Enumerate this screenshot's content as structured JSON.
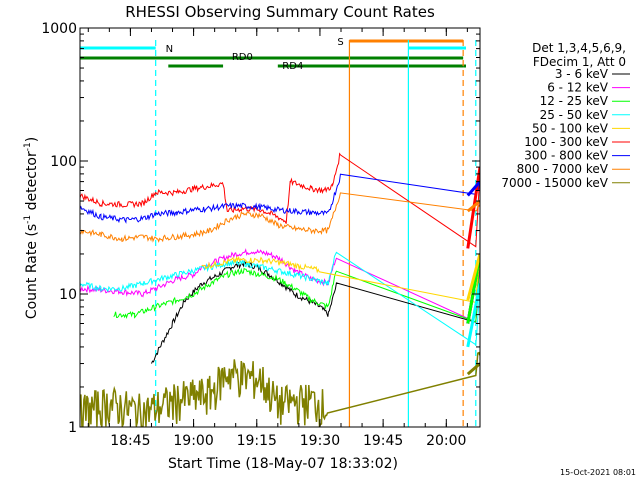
{
  "chart_data": {
    "type": "line",
    "title": "RHESSI Observing Summary Count Rates",
    "xlabel": "Start Time (18-May-07 18:33:02)",
    "ylabel": "Count Rate (s⁻¹ detector⁻¹)",
    "ylabel_parts": {
      "main": "Count Rate (s",
      "sup1": "-1",
      "mid": " detector",
      "sup2": "-1",
      "end": ")"
    },
    "y_scale": "log",
    "ylim": [
      1,
      1000
    ],
    "xlim": [
      "18:33:02",
      "20:08:00"
    ],
    "x_ticks": [
      "18:45",
      "19:00",
      "19:15",
      "19:30",
      "19:45",
      "20:00"
    ],
    "y_ticks": [
      "1",
      "10",
      "100",
      "1000"
    ],
    "legend_header": [
      "Det 1,3,4,5,6,9,",
      "FDecim 1, Att 0"
    ],
    "legend_position": "right",
    "timestamp": "15-Oct-2021 08:01",
    "flags": [
      {
        "label": "N",
        "color": "#00ffff"
      },
      {
        "label": "S",
        "color": "#ff8000"
      },
      {
        "label": "RD0",
        "color": "#008000"
      },
      {
        "label": "RD4",
        "color": "#008000"
      }
    ],
    "flag_intervals": {
      "N": [
        [
          "18:33",
          "18:51"
        ],
        [
          "19:51",
          "20:07"
        ]
      ],
      "S": [
        [
          "19:37",
          "20:04"
        ]
      ],
      "RD0": [
        [
          "18:33",
          "19:37"
        ],
        [
          "19:37",
          "20:04"
        ]
      ],
      "RD4": [
        [
          "18:54",
          "19:07"
        ],
        [
          "19:20",
          "20:04"
        ],
        [
          "20:04",
          "20:08"
        ]
      ]
    },
    "vertical_lines": [
      {
        "time": "18:51",
        "color": "#00ffff",
        "style": "dashed"
      },
      {
        "time": "19:37",
        "color": "#ff8000",
        "style": "solid"
      },
      {
        "time": "19:51",
        "color": "#00ffff",
        "style": "solid"
      },
      {
        "time": "20:04",
        "color": "#ff8000",
        "style": "dashed"
      },
      {
        "time": "20:07",
        "color": "#00ffff",
        "style": "dashed"
      }
    ],
    "series": [
      {
        "name": "3 - 6 keV",
        "color": "#000000",
        "points": [
          [
            "18:50",
            3
          ],
          [
            "18:52",
            4
          ],
          [
            "18:55",
            6
          ],
          [
            "18:58",
            9
          ],
          [
            "19:02",
            12
          ],
          [
            "19:06",
            14
          ],
          [
            "19:09",
            16
          ],
          [
            "19:12",
            17
          ],
          [
            "19:15",
            16
          ],
          [
            "19:18",
            14
          ],
          [
            "19:21",
            12
          ],
          [
            "19:24",
            10
          ],
          [
            "19:27",
            9
          ],
          [
            "19:30",
            8
          ],
          [
            "19:32",
            7
          ],
          [
            "19:34",
            12
          ],
          [
            "20:07",
            6
          ],
          [
            "20:08",
            20
          ]
        ]
      },
      {
        "name": "6 - 12 keV",
        "color": "#ff00ff",
        "points": [
          [
            "18:33",
            11
          ],
          [
            "18:42",
            10.5
          ],
          [
            "18:48",
            10
          ],
          [
            "18:51",
            11
          ],
          [
            "18:56",
            13
          ],
          [
            "19:00",
            14
          ],
          [
            "19:02",
            16
          ],
          [
            "19:06",
            18
          ],
          [
            "19:10",
            20
          ],
          [
            "19:14",
            21
          ],
          [
            "19:18",
            20
          ],
          [
            "19:21",
            18
          ],
          [
            "19:24",
            15
          ],
          [
            "19:28",
            13
          ],
          [
            "19:32",
            12
          ],
          [
            "19:34",
            20
          ],
          [
            "20:07",
            6
          ],
          [
            "20:08",
            20
          ]
        ]
      },
      {
        "name": "12 - 25 keV",
        "color": "#00ff00",
        "points": [
          [
            "18:41",
            7
          ],
          [
            "18:46",
            7
          ],
          [
            "18:51",
            8
          ],
          [
            "18:56",
            9
          ],
          [
            "19:00",
            10
          ],
          [
            "19:04",
            12
          ],
          [
            "19:08",
            14
          ],
          [
            "19:12",
            15
          ],
          [
            "19:16",
            14
          ],
          [
            "19:20",
            13
          ],
          [
            "19:24",
            11
          ],
          [
            "19:28",
            9
          ],
          [
            "19:32",
            8
          ],
          [
            "19:34",
            16
          ],
          [
            "20:07",
            6
          ],
          [
            "20:08",
            20
          ]
        ]
      },
      {
        "name": "25 - 50 keV",
        "color": "#00ffff",
        "points": [
          [
            "18:33",
            12
          ],
          [
            "18:38",
            11
          ],
          [
            "18:43",
            11
          ],
          [
            "18:48",
            12
          ],
          [
            "18:52",
            13
          ],
          [
            "18:56",
            14
          ],
          [
            "19:00",
            15
          ],
          [
            "19:04",
            16
          ],
          [
            "19:08",
            17
          ],
          [
            "19:12",
            17
          ],
          [
            "19:16",
            16
          ],
          [
            "19:20",
            15
          ],
          [
            "19:24",
            14
          ],
          [
            "19:28",
            13
          ],
          [
            "19:32",
            12
          ],
          [
            "19:34",
            22
          ],
          [
            "20:07",
            4
          ],
          [
            "20:08",
            12
          ]
        ]
      },
      {
        "name": "50 - 100 keV",
        "color": "#ffd700",
        "points": [
          [
            "19:02",
            16
          ],
          [
            "19:10",
            18
          ],
          [
            "19:16",
            18
          ],
          [
            "19:22",
            17
          ],
          [
            "19:30",
            15
          ],
          [
            "20:07",
            9
          ],
          [
            "20:08",
            20
          ]
        ]
      },
      {
        "name": "100 - 300 keV",
        "color": "#ff0000",
        "points": [
          [
            "18:33",
            55
          ],
          [
            "18:38",
            48
          ],
          [
            "18:44",
            47
          ],
          [
            "18:48",
            48
          ],
          [
            "18:51",
            58
          ],
          [
            "18:56",
            58
          ],
          [
            "19:00",
            62
          ],
          [
            "19:04",
            65
          ],
          [
            "19:07",
            68
          ],
          [
            "19:08",
            42
          ],
          [
            "19:12",
            44
          ],
          [
            "19:16",
            43
          ],
          [
            "19:20",
            38
          ],
          [
            "19:22",
            35
          ],
          [
            "19:23",
            70
          ],
          [
            "19:28",
            62
          ],
          [
            "19:31",
            60
          ],
          [
            "19:33",
            65
          ],
          [
            "19:35",
            120
          ],
          [
            "20:07",
            22
          ],
          [
            "20:08",
            90
          ]
        ]
      },
      {
        "name": "300 - 800 keV",
        "color": "#0000ff",
        "points": [
          [
            "18:33",
            45
          ],
          [
            "18:38",
            38
          ],
          [
            "18:44",
            36
          ],
          [
            "18:48",
            37
          ],
          [
            "18:51",
            40
          ],
          [
            "18:56",
            41
          ],
          [
            "19:00",
            43
          ],
          [
            "19:04",
            44
          ],
          [
            "19:08",
            46
          ],
          [
            "19:12",
            46
          ],
          [
            "19:16",
            45
          ],
          [
            "19:20",
            43
          ],
          [
            "19:24",
            42
          ],
          [
            "19:28",
            41
          ],
          [
            "19:32",
            40
          ],
          [
            "19:35",
            80
          ],
          [
            "20:07",
            55
          ],
          [
            "20:08",
            70
          ]
        ]
      },
      {
        "name": "800 - 7000 keV",
        "color": "#ff8000",
        "points": [
          [
            "18:33",
            30
          ],
          [
            "18:38",
            28
          ],
          [
            "18:43",
            26
          ],
          [
            "18:48",
            27
          ],
          [
            "18:51",
            26
          ],
          [
            "18:56",
            27
          ],
          [
            "19:00",
            28
          ],
          [
            "19:04",
            30
          ],
          [
            "19:08",
            36
          ],
          [
            "19:12",
            40
          ],
          [
            "19:16",
            39
          ],
          [
            "19:20",
            33
          ],
          [
            "19:24",
            31
          ],
          [
            "19:28",
            30
          ],
          [
            "19:32",
            30
          ],
          [
            "19:35",
            60
          ],
          [
            "20:07",
            42
          ],
          [
            "20:08",
            50
          ]
        ]
      },
      {
        "name": "7000 - 15000 keV",
        "color": "#808000",
        "points": [
          [
            "18:33",
            1.3
          ],
          [
            "18:40",
            1.5
          ],
          [
            "18:48",
            1.3
          ],
          [
            "18:56",
            1.6
          ],
          [
            "19:04",
            1.8
          ],
          [
            "19:08",
            2.6
          ],
          [
            "19:12",
            2.4
          ],
          [
            "19:16",
            2.3
          ],
          [
            "19:20",
            1.5
          ],
          [
            "19:28",
            1.6
          ],
          [
            "19:32",
            1.4
          ],
          [
            "20:07",
            2.5
          ],
          [
            "20:08",
            3
          ]
        ]
      }
    ]
  }
}
